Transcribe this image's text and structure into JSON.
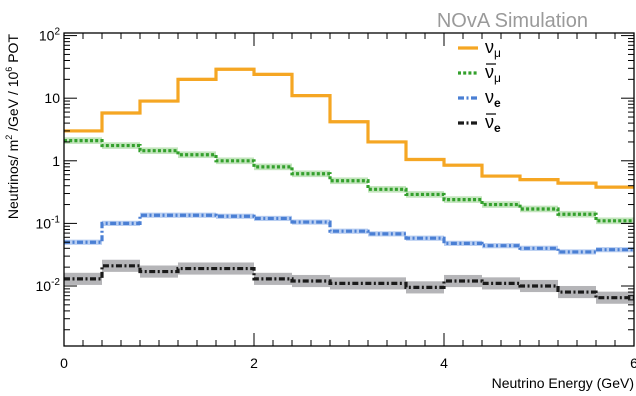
{
  "chart_data": {
    "type": "line",
    "title": "",
    "watermark": "NOvA Simulation",
    "xlabel": "Neutrino Energy (GeV)",
    "ylabel": {
      "prefix": "Neutrinos/ m",
      "exp1": "2",
      "middle": " /GeV / 10",
      "exp2": "6",
      "suffix": " POT"
    },
    "xlim": [
      0,
      6
    ],
    "ylim": [
      0.0011,
      110
    ],
    "yscale": "log",
    "xticks": [
      {
        "value": 0,
        "label": "0"
      },
      {
        "value": 2,
        "label": "2"
      },
      {
        "value": 4,
        "label": "4"
      },
      {
        "value": 6,
        "label": "6"
      }
    ],
    "yticks": [
      {
        "value": 100,
        "base": "10",
        "exp": "2"
      },
      {
        "value": 10,
        "base": "10",
        "exp": ""
      },
      {
        "value": 1,
        "base": "1",
        "exp": ""
      },
      {
        "value": 0.1,
        "base": "10",
        "exp": "-1"
      },
      {
        "value": 0.01,
        "base": "10",
        "exp": "-2"
      }
    ],
    "legend_position": "top-right",
    "bin_edges": [
      0,
      0.4,
      0.8,
      1.2,
      1.6,
      2.0,
      2.4,
      2.8,
      3.2,
      3.6,
      4.0,
      4.4,
      4.8,
      5.2,
      5.6,
      6.0
    ],
    "series": [
      {
        "name": "ν",
        "sub": "μ",
        "bar": false,
        "style": "solid",
        "color": "#f5a623",
        "band_color": "#f7d79a",
        "values": [
          3.0,
          5.8,
          9.0,
          20.0,
          29.0,
          24.0,
          11.0,
          4.2,
          2.0,
          1.05,
          0.85,
          0.57,
          0.5,
          0.44,
          0.38
        ],
        "band": 0.06
      },
      {
        "name": "ν",
        "sub": "μ",
        "bar": true,
        "style": "dotted",
        "color": "#33a02c",
        "band_color": "#b8e0b2",
        "values": [
          2.1,
          1.75,
          1.45,
          1.25,
          1.0,
          0.8,
          0.62,
          0.48,
          0.35,
          0.29,
          0.24,
          0.2,
          0.17,
          0.14,
          0.11
        ],
        "band": 0.13
      },
      {
        "name": "ν",
        "sub": "e",
        "bar": false,
        "style": "dashdot",
        "color": "#4a7fd4",
        "band_color": "#aac4ef",
        "values": [
          0.05,
          0.1,
          0.135,
          0.135,
          0.13,
          0.12,
          0.105,
          0.075,
          0.068,
          0.058,
          0.048,
          0.044,
          0.04,
          0.035,
          0.038
        ],
        "band": 0.1
      },
      {
        "name": "ν",
        "sub": "e",
        "bar": true,
        "style": "dashdot",
        "color": "#1a1a1a",
        "band_color": "#a8a8ac",
        "values": [
          0.013,
          0.021,
          0.017,
          0.019,
          0.019,
          0.013,
          0.012,
          0.011,
          0.011,
          0.0095,
          0.012,
          0.011,
          0.01,
          0.008,
          0.0065
        ],
        "band": 0.25
      }
    ]
  }
}
